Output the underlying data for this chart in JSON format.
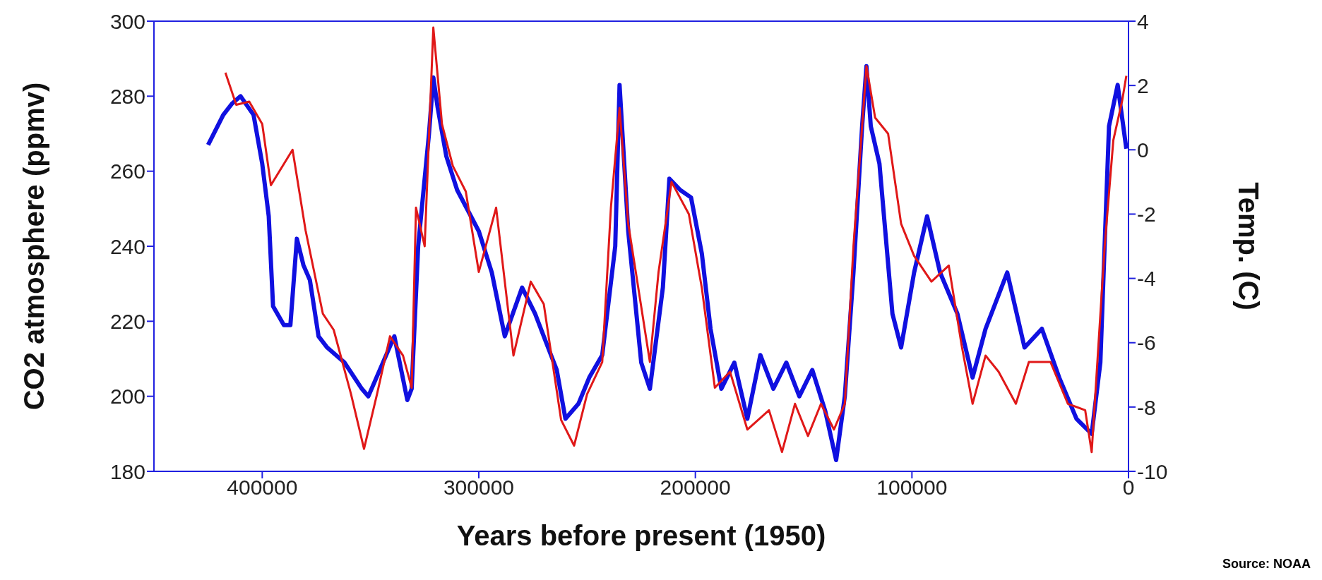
{
  "chart_data": {
    "type": "line",
    "xlabel": "Years before present (1950)",
    "ylabel": "CO2 atmosphere (ppmv)",
    "y2label": "Temp. (C)",
    "xlim": [
      450000,
      0
    ],
    "xticks": [
      400000,
      300000,
      200000,
      100000,
      0
    ],
    "ylim": [
      180,
      300
    ],
    "yticks": [
      180,
      200,
      220,
      240,
      260,
      280,
      300
    ],
    "y2lim": [
      -10,
      4
    ],
    "y2ticks": [
      -10,
      -8,
      -6,
      -4,
      -2,
      0,
      2,
      4
    ],
    "grid": false,
    "legend": false,
    "marker": "none",
    "line_style": "solid",
    "annotations": [
      "Source: NOAA"
    ],
    "series": [
      {
        "color": "#1010e0",
        "x": [
          425000,
          418000,
          414000,
          410000,
          404000,
          400000,
          397000,
          395000,
          390000,
          387000,
          384000,
          381000,
          378000,
          374000,
          370000,
          362000,
          354000,
          351000,
          345000,
          339000,
          333000,
          331000,
          328000,
          323000,
          321000,
          319000,
          315000,
          310000,
          300000,
          294000,
          288000,
          280000,
          274000,
          264000,
          260000,
          254000,
          249000,
          243000,
          237000,
          235000,
          231000,
          225000,
          221000,
          215000,
          212000,
          207000,
          202000,
          197000,
          193000,
          188000,
          182000,
          176000,
          170000,
          164000,
          158000,
          152000,
          146000,
          140000,
          135000,
          131000,
          127000,
          123000,
          121000,
          119000,
          115000,
          109000,
          105000,
          99000,
          93000,
          87000,
          79000,
          72000,
          66000,
          56000,
          48000,
          40000,
          32000,
          24000,
          17000,
          13000,
          9000,
          5000,
          1000
        ],
        "values": [
          267,
          275,
          278,
          280,
          275,
          262,
          248,
          224,
          219,
          219,
          242,
          235,
          231,
          216,
          213,
          209,
          202,
          200,
          208,
          216,
          199,
          202,
          240,
          270,
          285,
          277,
          264,
          255,
          244,
          233,
          216,
          229,
          222,
          207,
          194,
          198,
          205,
          211,
          240,
          283,
          244,
          209,
          202,
          229,
          258,
          255,
          253,
          238,
          218,
          202,
          209,
          194,
          211,
          202,
          209,
          200,
          207,
          196,
          183,
          200,
          233,
          272,
          288,
          272,
          262,
          222,
          213,
          233,
          248,
          233,
          222,
          205,
          218,
          233,
          213,
          218,
          205,
          194,
          190,
          209,
          272,
          283,
          266
        ]
      },
      {
        "color": "#e01818",
        "axis": "y2",
        "x": [
          417000,
          412000,
          406000,
          400000,
          396000,
          386000,
          380000,
          372000,
          367000,
          359000,
          353000,
          347000,
          341000,
          335000,
          331000,
          329000,
          325000,
          321000,
          317000,
          312000,
          306000,
          300000,
          292000,
          284000,
          276000,
          270000,
          262000,
          256000,
          250000,
          243000,
          239000,
          235000,
          231000,
          221000,
          217000,
          211000,
          203000,
          197000,
          191000,
          184000,
          176000,
          166000,
          160000,
          154000,
          148000,
          142000,
          136000,
          131000,
          127000,
          121000,
          117000,
          111000,
          105000,
          99000,
          91000,
          83000,
          77000,
          72000,
          66000,
          60000,
          52000,
          46000,
          36000,
          28000,
          20000,
          17000,
          11000,
          7000,
          3000,
          1000
        ],
        "values": [
          2.4,
          1.4,
          1.5,
          0.8,
          -1.1,
          0.0,
          -2.5,
          -5.1,
          -5.6,
          -7.6,
          -9.3,
          -7.6,
          -5.8,
          -6.4,
          -7.4,
          -1.8,
          -3.0,
          3.8,
          0.8,
          -0.5,
          -1.3,
          -3.8,
          -1.8,
          -6.4,
          -4.1,
          -4.8,
          -8.4,
          -9.2,
          -7.6,
          -6.6,
          -1.8,
          1.3,
          -2.3,
          -6.6,
          -3.8,
          -1.0,
          -2.0,
          -4.3,
          -7.4,
          -6.9,
          -8.7,
          -8.1,
          -9.4,
          -7.9,
          -8.9,
          -7.9,
          -8.7,
          -7.9,
          -3.0,
          2.6,
          1.0,
          0.5,
          -2.3,
          -3.3,
          -4.1,
          -3.6,
          -6.1,
          -7.9,
          -6.4,
          -6.9,
          -7.9,
          -6.6,
          -6.6,
          -7.9,
          -8.1,
          -9.4,
          -3.0,
          0.3,
          1.5,
          2.3
        ]
      }
    ]
  }
}
